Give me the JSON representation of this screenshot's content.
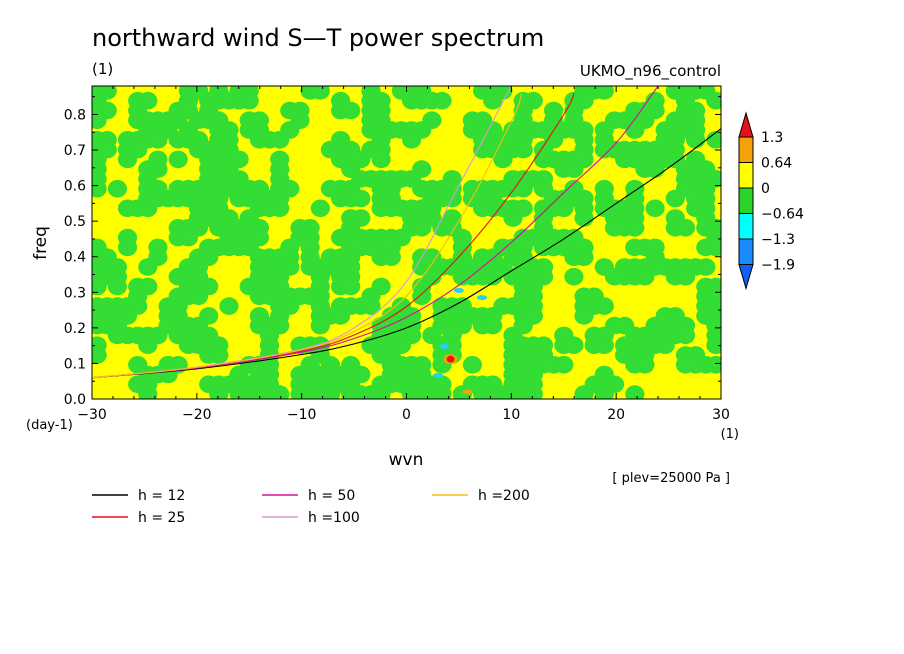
{
  "chart_data": {
    "type": "heatmap",
    "title": "northward wind S—T power spectrum",
    "subtitle_left": "(1)",
    "subtitle_right": "UKMO_n96_control",
    "xlabel": "wvn",
    "xunit": "(1)",
    "ylabel": "freq",
    "yunit": "(day-1)",
    "xlim": [
      -30,
      30
    ],
    "ylim": [
      0,
      0.88
    ],
    "xticks": [
      "−30",
      "−20",
      "−10",
      "0",
      "10",
      "20",
      "30"
    ],
    "xtick_values": [
      -30,
      -20,
      -10,
      0,
      10,
      20,
      30
    ],
    "yticks": [
      "0.0",
      "0.1",
      "0.2",
      "0.3",
      "0.4",
      "0.5",
      "0.6",
      "0.7",
      "0.8"
    ],
    "ytick_values": [
      0,
      0.1,
      0.2,
      0.3,
      0.4,
      0.5,
      0.6,
      0.7,
      0.8
    ],
    "annotation": "[ plev=25000 Pa ]",
    "colorbar": {
      "labels": [
        "1.3",
        "0.64",
        "0",
        "−0.64",
        "−1.3",
        "−1.9"
      ],
      "colors": [
        "#e8101c",
        "#f5a20a",
        "#ffff00",
        "#2ad42a",
        "#00ffff",
        "#1a8cff",
        "#1060f0"
      ]
    },
    "field_colors": {
      "positive": "#ffff00",
      "negative": "#33dd33",
      "peak": "#ee1111",
      "high": "#f5a20a",
      "trough": "#22cfff"
    },
    "spots": [
      {
        "x": 4.2,
        "y": 0.112,
        "level": "peak"
      },
      {
        "x": 3.6,
        "y": 0.148,
        "level": "trough"
      },
      {
        "x": 5.0,
        "y": 0.305,
        "level": "trough"
      },
      {
        "x": 7.2,
        "y": 0.285,
        "level": "trough"
      },
      {
        "x": 3.0,
        "y": 0.066,
        "level": "trough"
      },
      {
        "x": 5.8,
        "y": 0.02,
        "level": "high"
      }
    ],
    "series": [
      {
        "name": "h = 12",
        "color": "#000000",
        "x": [
          -30,
          -20,
          -10,
          -5,
          0,
          5,
          10,
          15,
          20,
          25,
          30
        ],
        "values": [
          0.06,
          0.085,
          0.125,
          0.155,
          0.2,
          0.27,
          0.36,
          0.45,
          0.55,
          0.65,
          0.76
        ]
      },
      {
        "name": "h = 25",
        "color": "#e8101c",
        "x": [
          -30,
          -20,
          -10,
          -5,
          0,
          5,
          10,
          15,
          16
        ],
        "values": [
          0.06,
          0.088,
          0.135,
          0.18,
          0.26,
          0.4,
          0.58,
          0.8,
          0.86
        ]
      },
      {
        "name": "h = 50",
        "color": "#d4109a",
        "x": [
          -30,
          -20,
          -10,
          -5,
          0,
          5,
          10,
          15,
          20,
          24
        ],
        "values": [
          0.06,
          0.087,
          0.132,
          0.17,
          0.23,
          0.32,
          0.44,
          0.58,
          0.72,
          0.88
        ]
      },
      {
        "name": "h =100",
        "color": "#d79ad7",
        "x": [
          -30,
          -20,
          -10,
          -5,
          0,
          5,
          10
        ],
        "values": [
          0.06,
          0.09,
          0.14,
          0.2,
          0.33,
          0.6,
          0.88
        ]
      },
      {
        "name": "h =200",
        "color": "#f0c014",
        "x": [
          -30,
          -20,
          -10,
          -5,
          0,
          5,
          10,
          11
        ],
        "values": [
          0.06,
          0.089,
          0.138,
          0.19,
          0.29,
          0.5,
          0.78,
          0.86
        ]
      }
    ]
  }
}
